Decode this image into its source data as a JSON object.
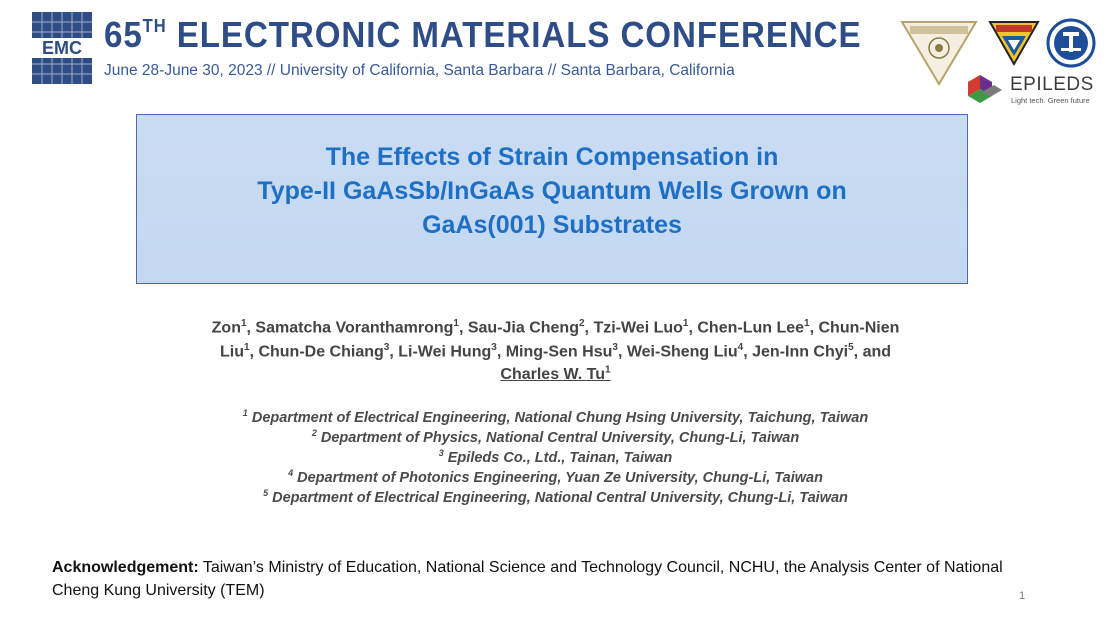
{
  "header": {
    "logo_text": "EMC",
    "conference_number": "65",
    "conference_ordinal": "TH",
    "conference_name": "ELECTRONIC MATERIALS CONFERENCE",
    "conference_subtitle": "June 28-June 30, 2023 // University of California, Santa Barbara // Santa Barbara, California"
  },
  "sponsors": {
    "epileds_name": "EPILEDS",
    "epileds_tagline": "Light tech. Green future"
  },
  "title": {
    "line1": "The Effects of Strain Compensation in",
    "line2": "Type-II GaAsSb/InGaAs Quantum Wells Grown on",
    "line3": "GaAs(001) Substrates"
  },
  "authors": [
    {
      "name": "Zon",
      "aff": "1"
    },
    {
      "name": "Samatcha Voranthamrong",
      "aff": "1"
    },
    {
      "name": "Sau-Jia Cheng",
      "aff": "2"
    },
    {
      "name": "Tzi-Wei Luo",
      "aff": "1"
    },
    {
      "name": "Chen-Lun Lee",
      "aff": "1"
    },
    {
      "name": "Chun-Nien Liu",
      "aff": "1"
    },
    {
      "name": "Chun-De Chiang",
      "aff": "3"
    },
    {
      "name": "Li-Wei Hung",
      "aff": "3"
    },
    {
      "name": "Ming-Sen Hsu",
      "aff": "3"
    },
    {
      "name": "Wei-Sheng Liu",
      "aff": "4"
    },
    {
      "name": "Jen-Inn Chyi",
      "aff": "5"
    },
    {
      "name": "Charles W. Tu",
      "aff": "1"
    }
  ],
  "author_connector": "and",
  "affiliations": [
    {
      "num": "1",
      "text": "Department of Electrical Engineering, National Chung Hsing University, Taichung, Taiwan"
    },
    {
      "num": "2",
      "text": "Department of Physics, National Central University, Chung-Li, Taiwan"
    },
    {
      "num": "3",
      "text": "Epileds Co., Ltd., Tainan, Taiwan"
    },
    {
      "num": "4",
      "text": "Department of Photonics Engineering, Yuan Ze University, Chung-Li, Taiwan"
    },
    {
      "num": "5",
      "text": "Department of Electrical Engineering, National Central University, Chung-Li, Taiwan"
    }
  ],
  "acknowledgement": {
    "label": "Acknowledgement:",
    "text": "Taiwan’s Ministry of Education, National Science and Technology Council, NCHU, the Analysis Center of National Cheng Kung University (TEM)"
  },
  "page_number": "1",
  "colors": {
    "header_blue": "#2e4d86",
    "title_blue": "#1f6fc4",
    "title_box_bg": "#c6daf2",
    "title_box_border": "#4a6bb3"
  },
  "icons": [
    "emc-logo-icon",
    "nchu-logo-icon",
    "yzu-logo-icon",
    "ncu-logo-icon",
    "epileds-logo-icon"
  ]
}
